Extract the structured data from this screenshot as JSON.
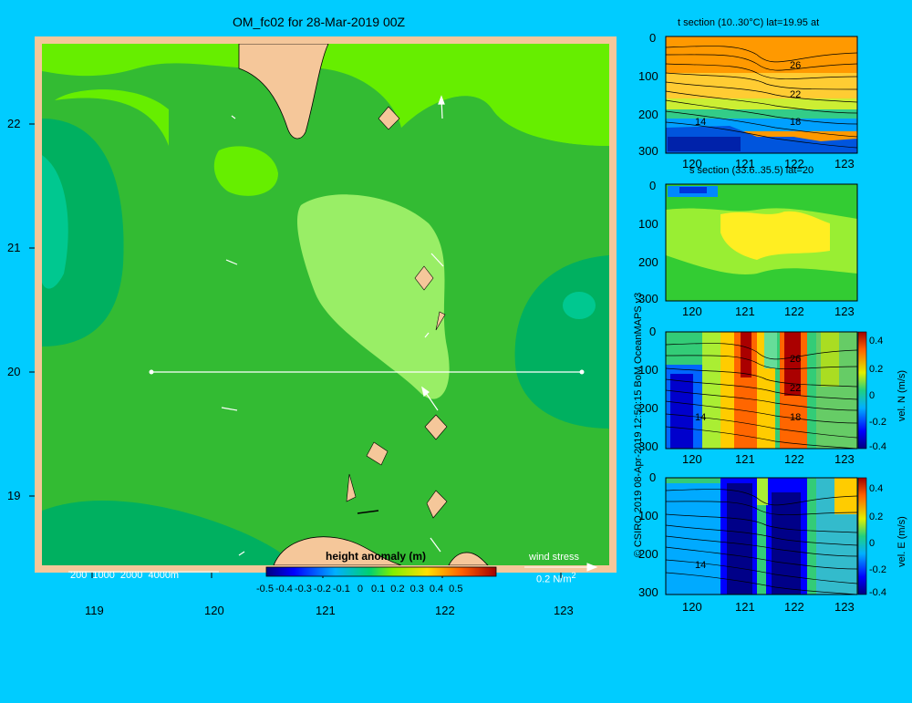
{
  "main_map": {
    "title": "OM_fc02 for 28-Mar-2019 00Z",
    "x_ticks": [
      "119",
      "120",
      "121",
      "122",
      "123"
    ],
    "y_ticks": [
      "22",
      "21",
      "20",
      "19"
    ],
    "depth_legend": "200  1000  2000  4000m",
    "colorbar_title": "height anomaly (m)",
    "colorbar_ticks": [
      "-0.5",
      "-0.4",
      "-0.3",
      "-0.2",
      "-0.1",
      "0",
      "0.1",
      "0.2",
      "0.3",
      "0.4",
      "0.5"
    ],
    "wind_label": "wind stress",
    "wind_scale": "0.2 N/m",
    "wind_scale_sup": "2"
  },
  "panels": {
    "t_section_title": "t section (10..30°C) lat=19.95 at",
    "s_section_title": "s section (33.6..35.5) lat=20",
    "y_ticks": [
      "0",
      "100",
      "200",
      "300"
    ],
    "x_ticks": [
      "120",
      "121",
      "122",
      "123"
    ],
    "contour_labels": [
      "26",
      "22",
      "18",
      "14"
    ],
    "vn_label": "vel. N (m/s)",
    "ve_label": "vel. E (m/s)",
    "vel_ticks": [
      "0.4",
      "0.2",
      "0",
      "-0.2",
      "-0.4"
    ]
  },
  "credit": "© CSIRO 2019   08-Apr-2019 12:50:15 BoM OceanMAPS v3",
  "colors": {
    "background": "#00ccff",
    "land": "#f5c79a",
    "sea_base": "#33bb33",
    "positive_anomaly": "#66ee00",
    "negative_anomaly": "#00b060"
  },
  "chart_data": [
    {
      "type": "heatmap",
      "title": "OM_fc02 for 28-Mar-2019 00Z",
      "variable": "height anomaly (m)",
      "xlim": [
        118.5,
        123.5
      ],
      "ylim": [
        18.3,
        22.7
      ],
      "xticks": [
        119,
        120,
        121,
        122,
        123
      ],
      "yticks": [
        19,
        20,
        21,
        22
      ],
      "colorbar_range": [
        -0.5,
        0.5
      ],
      "section_line": {
        "lat": 20,
        "lon_start": 119.5,
        "lon_end": 123.2
      },
      "regions": [
        {
          "name": "background",
          "value": 0.05
        },
        {
          "name": "central raised area",
          "value": 0.1
        },
        {
          "name": "north-east raised area",
          "value": 0.1
        },
        {
          "name": "western lower area",
          "value": -0.05
        },
        {
          "name": "eastern lower area",
          "value": -0.05
        }
      ]
    },
    {
      "type": "heatmap",
      "title": "t section (10..30°C) lat=19.95 at",
      "xlim": [
        119.6,
        123.3
      ],
      "ylim": [
        300,
        0
      ],
      "value_range": [
        10,
        30
      ],
      "contour_labels": [
        26,
        22,
        18,
        14
      ]
    },
    {
      "type": "heatmap",
      "title": "s section (33.6..35.5) lat=20",
      "xlim": [
        119.6,
        123.3
      ],
      "ylim": [
        300,
        0
      ],
      "value_range": [
        33.6,
        35.5
      ]
    },
    {
      "type": "heatmap",
      "title": "vel. N (m/s)",
      "xlim": [
        119.6,
        123.3
      ],
      "ylim": [
        300,
        0
      ],
      "colorbar_range": [
        -0.4,
        0.4
      ]
    },
    {
      "type": "heatmap",
      "title": "vel. E (m/s)",
      "xlim": [
        119.6,
        123.3
      ],
      "ylim": [
        300,
        0
      ],
      "colorbar_range": [
        -0.4,
        0.4
      ]
    }
  ]
}
